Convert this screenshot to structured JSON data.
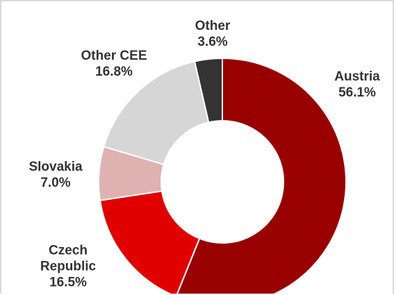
{
  "chart_data": {
    "type": "donut",
    "categories": [
      "Austria",
      "Czech Republic",
      "Slovakia",
      "Other CEE",
      "Other"
    ],
    "values": [
      56.1,
      16.5,
      7.0,
      16.8,
      3.6
    ],
    "value_labels": [
      "56.1%",
      "16.5%",
      "7.0%",
      "16.8%",
      "3.6%"
    ],
    "colors": [
      "#990000",
      "#e00000",
      "#e0b1b1",
      "#d6d6d6",
      "#333333"
    ]
  }
}
